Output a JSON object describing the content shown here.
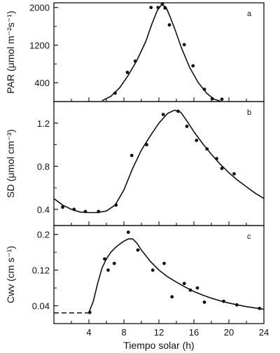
{
  "chart_data": [
    {
      "type": "scatter",
      "panel_label": "a",
      "ylabel": "PAR (μmol m⁻²s⁻¹)",
      "xlim": [
        0,
        24
      ],
      "ylim": [
        0,
        2100
      ],
      "yticks": [
        400,
        1200,
        2000
      ],
      "grid": false,
      "points": [
        [
          7,
          180
        ],
        [
          8.4,
          620
        ],
        [
          9.3,
          860
        ],
        [
          11.1,
          2000
        ],
        [
          11.9,
          2000
        ],
        [
          12.4,
          2080
        ],
        [
          12.7,
          1990
        ],
        [
          13.2,
          1630
        ],
        [
          14.9,
          1210
        ],
        [
          15.9,
          760
        ],
        [
          17.2,
          260
        ],
        [
          18.1,
          60
        ],
        [
          19.2,
          50
        ]
      ],
      "fit_curve": [
        [
          5.5,
          20
        ],
        [
          6.5,
          110
        ],
        [
          7.5,
          290
        ],
        [
          8.5,
          560
        ],
        [
          9.5,
          880
        ],
        [
          10.5,
          1280
        ],
        [
          11.2,
          1650
        ],
        [
          11.8,
          1930
        ],
        [
          12.3,
          2060
        ],
        [
          12.8,
          2010
        ],
        [
          13.2,
          1840
        ],
        [
          13.8,
          1550
        ],
        [
          14.6,
          1130
        ],
        [
          15.5,
          730
        ],
        [
          16.5,
          400
        ],
        [
          17.5,
          170
        ],
        [
          18.3,
          50
        ],
        [
          19,
          10
        ]
      ]
    },
    {
      "type": "scatter",
      "panel_label": "b",
      "ylabel": "SD (μmol cm⁻³)",
      "xlim": [
        0,
        24
      ],
      "ylim": [
        0.25,
        1.4
      ],
      "yticks": [
        0.4,
        0.8,
        1.2
      ],
      "grid": false,
      "points": [
        [
          1,
          0.42
        ],
        [
          2.3,
          0.4
        ],
        [
          3.6,
          0.38
        ],
        [
          5.1,
          0.38
        ],
        [
          7.1,
          0.44
        ],
        [
          8.9,
          0.9
        ],
        [
          10.6,
          1.0
        ],
        [
          12.5,
          1.28
        ],
        [
          14.2,
          1.31
        ],
        [
          15.2,
          1.17
        ],
        [
          16.3,
          1.04
        ],
        [
          17.5,
          0.96
        ],
        [
          18.6,
          0.87
        ],
        [
          19.2,
          0.78
        ],
        [
          20.6,
          0.73
        ]
      ],
      "fit_curve": [
        [
          0,
          0.5
        ],
        [
          1,
          0.44
        ],
        [
          2,
          0.4
        ],
        [
          3,
          0.375
        ],
        [
          4,
          0.37
        ],
        [
          5,
          0.37
        ],
        [
          6,
          0.385
        ],
        [
          7,
          0.44
        ],
        [
          8,
          0.58
        ],
        [
          9,
          0.78
        ],
        [
          10,
          0.95
        ],
        [
          11,
          1.08
        ],
        [
          12,
          1.2
        ],
        [
          13,
          1.29
        ],
        [
          13.8,
          1.32
        ],
        [
          14.5,
          1.3
        ],
        [
          15.2,
          1.22
        ],
        [
          16,
          1.12
        ],
        [
          17,
          1.01
        ],
        [
          18,
          0.91
        ],
        [
          19,
          0.82
        ],
        [
          20,
          0.74
        ],
        [
          21,
          0.67
        ],
        [
          22,
          0.61
        ],
        [
          23,
          0.55
        ],
        [
          24,
          0.5
        ]
      ]
    },
    {
      "type": "scatter",
      "panel_label": "c",
      "ylabel": "Cwv (cm s⁻¹)",
      "xlabel": "Tiempo solar (h)",
      "xlim": [
        0,
        24
      ],
      "xticks": [
        4,
        8,
        12,
        16,
        20,
        24
      ],
      "ylim": [
        0,
        0.22
      ],
      "yticks": [
        0.04,
        0.12,
        0.2
      ],
      "grid": false,
      "points": [
        [
          4.1,
          0.025
        ],
        [
          5.8,
          0.145
        ],
        [
          6.2,
          0.12
        ],
        [
          6.9,
          0.135
        ],
        [
          8.5,
          0.205
        ],
        [
          9.6,
          0.165
        ],
        [
          11.3,
          0.12
        ],
        [
          12.6,
          0.135
        ],
        [
          13.5,
          0.06
        ],
        [
          14.9,
          0.09
        ],
        [
          15.6,
          0.075
        ],
        [
          16.4,
          0.08
        ],
        [
          17.2,
          0.048
        ],
        [
          19.4,
          0.05
        ],
        [
          20.9,
          0.042
        ],
        [
          23.5,
          0.034
        ]
      ],
      "fit_curve": [
        [
          4,
          0.025
        ],
        [
          4.5,
          0.05
        ],
        [
          5,
          0.09
        ],
        [
          5.5,
          0.125
        ],
        [
          6,
          0.145
        ],
        [
          6.5,
          0.16
        ],
        [
          7,
          0.17
        ],
        [
          7.5,
          0.178
        ],
        [
          8,
          0.185
        ],
        [
          8.5,
          0.19
        ],
        [
          9,
          0.19
        ],
        [
          9.5,
          0.18
        ],
        [
          10,
          0.165
        ],
        [
          11,
          0.14
        ],
        [
          12,
          0.12
        ],
        [
          13,
          0.105
        ],
        [
          14,
          0.093
        ],
        [
          15,
          0.082
        ],
        [
          16,
          0.072
        ],
        [
          17,
          0.064
        ],
        [
          18,
          0.057
        ],
        [
          19,
          0.051
        ],
        [
          20,
          0.046
        ],
        [
          21,
          0.042
        ],
        [
          22,
          0.038
        ],
        [
          23,
          0.035
        ],
        [
          24,
          0.032
        ]
      ],
      "dashed_segment": [
        [
          0,
          0.024
        ],
        [
          4,
          0.024
        ]
      ]
    }
  ]
}
